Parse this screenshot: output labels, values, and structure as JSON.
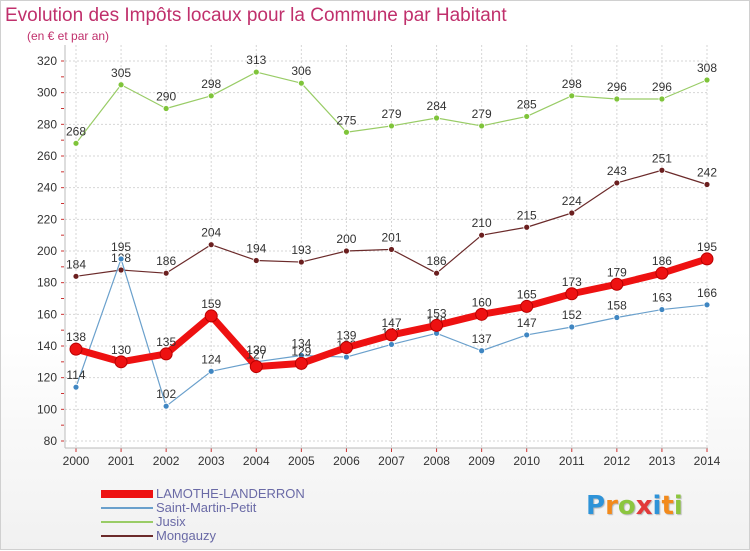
{
  "title": "Evolution des Impôts locaux pour la Commune par Habitant",
  "subtitle": "(en € et par an)",
  "brand": {
    "letters": [
      "P",
      "r",
      "o",
      "x",
      "i",
      "t",
      "i"
    ],
    "colors": [
      "#2e93d8",
      "#f28a1c",
      "#8cc63f",
      "#e23a3a",
      "#2e93d8",
      "#f28a1c",
      "#8cc63f"
    ]
  },
  "legend": [
    {
      "label": "LAMOTHE-LANDERRON",
      "color": "#ee1111",
      "style": "thick"
    },
    {
      "label": "Saint-Martin-Petit",
      "color": "#6aa0cc",
      "style": "thin"
    },
    {
      "label": "Jusix",
      "color": "#99cc66",
      "style": "thin"
    },
    {
      "label": "Mongauzy",
      "color": "#6b2a2a",
      "style": "thin"
    }
  ],
  "chart_data": {
    "type": "line",
    "title": "Evolution des Impôts locaux pour la Commune par Habitant",
    "subtitle": "(en € et par an)",
    "x": [
      "2000",
      "2001",
      "2002",
      "2003",
      "2004",
      "2005",
      "2006",
      "2007",
      "2008",
      "2009",
      "2010",
      "2011",
      "2012",
      "2013",
      "2014"
    ],
    "ylim": [
      80,
      320
    ],
    "yticks": [
      80,
      100,
      120,
      140,
      160,
      180,
      200,
      220,
      240,
      260,
      280,
      300,
      320
    ],
    "grid": true,
    "legend_position": "bottom-left",
    "series": [
      {
        "name": "Jusix",
        "color": "#99cc66",
        "point": "#7fc43a",
        "width": 1.2,
        "radius": 3,
        "values": [
          268,
          305,
          290,
          298,
          313,
          306,
          275,
          279,
          284,
          279,
          285,
          298,
          296,
          296,
          308
        ]
      },
      {
        "name": "Mongauzy",
        "color": "#6b2a2a",
        "point": "#6b1f1f",
        "width": 1.2,
        "radius": 3,
        "values": [
          184,
          188,
          186,
          204,
          194,
          193,
          200,
          201,
          186,
          210,
          215,
          224,
          243,
          251,
          242
        ]
      },
      {
        "name": "Saint-Martin-Petit",
        "color": "#6aa0cc",
        "point": "#3f86c2",
        "width": 1.2,
        "radius": 3,
        "values": [
          114,
          195,
          102,
          124,
          130,
          134,
          133,
          141,
          148,
          137,
          147,
          152,
          158,
          163,
          166
        ]
      },
      {
        "name": "LAMOTHE-LANDERRON",
        "color": "#ee1111",
        "point": "#ee1111",
        "width": 7,
        "radius": 6,
        "values": [
          138,
          130,
          135,
          159,
          127,
          129,
          139,
          147,
          153,
          160,
          165,
          173,
          179,
          186,
          195
        ]
      }
    ]
  }
}
